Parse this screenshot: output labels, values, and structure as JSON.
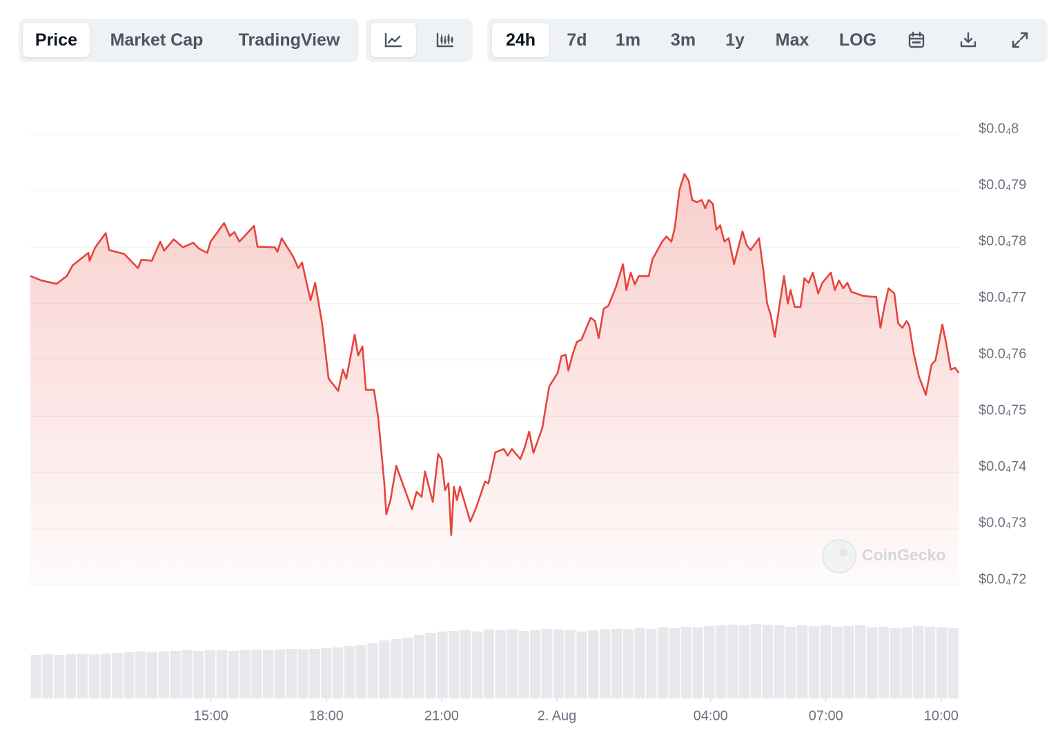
{
  "toolbar": {
    "views": [
      "Price",
      "Market Cap",
      "TradingView"
    ],
    "ranges": [
      "24h",
      "7d",
      "1m",
      "3m",
      "1y",
      "Max",
      "LOG"
    ]
  },
  "chart_data": {
    "type": "line",
    "watermark": "CoinGecko",
    "color": "#e5443b",
    "volume_color": "#e6e8ec",
    "x": [
      10.3,
      10.59,
      10.98,
      11.25,
      11.4,
      11.81,
      11.84,
      11.99,
      12.26,
      12.35,
      12.74,
      13.1,
      13.19,
      13.46,
      13.68,
      13.78,
      14.03,
      14.27,
      14.54,
      14.68,
      14.9,
      14.99,
      15.34,
      15.49,
      15.61,
      15.74,
      16.12,
      16.21,
      16.66,
      16.73,
      16.84,
      17.14,
      17.27,
      17.37,
      17.59,
      17.71,
      17.89,
      18.06,
      18.31,
      18.43,
      18.52,
      18.74,
      18.83,
      18.94,
      19.03,
      19.24,
      19.35,
      19.51,
      19.56,
      19.67,
      19.82,
      20.1,
      20.23,
      20.35,
      20.48,
      20.57,
      20.77,
      20.91,
      21.0,
      21.09,
      21.18,
      21.25,
      21.32,
      21.4,
      21.48,
      21.75,
      21.9,
      22.13,
      22.22,
      22.4,
      22.62,
      22.72,
      22.83,
      23.05,
      23.15,
      23.28,
      23.39,
      23.62,
      23.8,
      24.02,
      24.12,
      24.23,
      24.3,
      24.41,
      24.52,
      24.64,
      24.88,
      24.99,
      25.09,
      25.22,
      25.34,
      25.54,
      25.72,
      25.81,
      25.92,
      26.03,
      26.13,
      26.39,
      26.49,
      26.74,
      26.85,
      26.98,
      27.07,
      27.19,
      27.32,
      27.43,
      27.52,
      27.64,
      27.77,
      27.86,
      27.95,
      28.06,
      28.15,
      28.25,
      28.36,
      28.47,
      28.61,
      28.83,
      28.94,
      29.04,
      29.26,
      29.37,
      29.47,
      29.56,
      29.67,
      29.8,
      29.91,
      30.01,
      30.08,
      30.19,
      30.34,
      30.44,
      30.55,
      30.66,
      30.8,
      30.91,
      31.13,
      31.23,
      31.34,
      31.45,
      31.56,
      31.66,
      31.95,
      32.2,
      32.31,
      32.42,
      32.52,
      32.63,
      32.78,
      32.88,
      32.99,
      33.1,
      33.17,
      33.28,
      33.42,
      33.6,
      33.75,
      33.85,
      34.03,
      34.14,
      34.25,
      34.36,
      34.46
    ],
    "values": [
      7.749e-05,
      7.741e-05,
      7.735e-05,
      7.749e-05,
      7.768e-05,
      7.79e-05,
      7.776e-05,
      7.8e-05,
      7.825e-05,
      7.795e-05,
      7.788e-05,
      7.763e-05,
      7.778e-05,
      7.776e-05,
      7.81e-05,
      7.794e-05,
      7.814e-05,
      7.8e-05,
      7.808e-05,
      7.798e-05,
      7.79e-05,
      7.81e-05,
      7.843e-05,
      7.82e-05,
      7.827e-05,
      7.81e-05,
      7.838e-05,
      7.801e-05,
      7.8e-05,
      7.792e-05,
      7.816e-05,
      7.783e-05,
      7.763e-05,
      7.773e-05,
      7.706e-05,
      7.737e-05,
      7.665e-05,
      7.567e-05,
      7.545e-05,
      7.583e-05,
      7.567e-05,
      7.645e-05,
      7.608e-05,
      7.624e-05,
      7.547e-05,
      7.547e-05,
      7.498e-05,
      7.381e-05,
      7.326e-05,
      7.351e-05,
      7.412e-05,
      7.359e-05,
      7.335e-05,
      7.366e-05,
      7.357e-05,
      7.402e-05,
      7.348e-05,
      7.433e-05,
      7.424e-05,
      7.369e-05,
      7.381e-05,
      7.289e-05,
      7.375e-05,
      7.351e-05,
      7.375e-05,
      7.313e-05,
      7.338e-05,
      7.384e-05,
      7.381e-05,
      7.436e-05,
      7.442e-05,
      7.43e-05,
      7.442e-05,
      7.424e-05,
      7.442e-05,
      7.473e-05,
      7.435e-05,
      7.479e-05,
      7.553e-05,
      7.577e-05,
      7.607e-05,
      7.609e-05,
      7.581e-05,
      7.61e-05,
      7.632e-05,
      7.636e-05,
      7.675e-05,
      7.669e-05,
      7.639e-05,
      7.691e-05,
      7.696e-05,
      7.73e-05,
      7.77e-05,
      7.724e-05,
      7.755e-05,
      7.734e-05,
      7.749e-05,
      7.749e-05,
      7.779e-05,
      7.81e-05,
      7.819e-05,
      7.81e-05,
      7.835e-05,
      7.902e-05,
      7.93e-05,
      7.918e-05,
      7.884e-05,
      7.88e-05,
      7.884e-05,
      7.869e-05,
      7.884e-05,
      7.877e-05,
      7.831e-05,
      7.839e-05,
      7.81e-05,
      7.816e-05,
      7.77e-05,
      7.828e-05,
      7.804e-05,
      7.795e-05,
      7.816e-05,
      7.761e-05,
      7.7e-05,
      7.681e-05,
      7.641e-05,
      7.7e-05,
      7.749e-05,
      7.7e-05,
      7.724e-05,
      7.694e-05,
      7.694e-05,
      7.745e-05,
      7.737e-05,
      7.755e-05,
      7.718e-05,
      7.737e-05,
      7.755e-05,
      7.724e-05,
      7.741e-05,
      7.727e-05,
      7.737e-05,
      7.721e-05,
      7.714e-05,
      7.712e-05,
      7.712e-05,
      7.657e-05,
      7.694e-05,
      7.727e-05,
      7.718e-05,
      7.665e-05,
      7.657e-05,
      7.669e-05,
      7.661e-05,
      7.614e-05,
      7.571e-05,
      7.538e-05,
      7.592e-05,
      7.599e-05,
      7.663e-05,
      7.626e-05,
      7.583e-05,
      7.586e-05,
      7.577e-05
    ],
    "xlim": [
      10.3,
      34.47
    ],
    "xticks": [
      {
        "value": 15,
        "label": "15:00"
      },
      {
        "value": 18,
        "label": "18:00"
      },
      {
        "value": 21,
        "label": "21:00"
      },
      {
        "value": 24,
        "label": "2. Aug"
      },
      {
        "value": 28,
        "label": "04:00"
      },
      {
        "value": 31,
        "label": "07:00"
      },
      {
        "value": 34,
        "label": "10:00"
      }
    ],
    "ylim": [
      7.2e-05,
      8e-05
    ],
    "yticks": [
      {
        "value": 7.2e-05,
        "label": "$0.0₄72"
      },
      {
        "value": 7.3e-05,
        "label": "$0.0₄73"
      },
      {
        "value": 7.4e-05,
        "label": "$0.0₄74"
      },
      {
        "value": 7.5e-05,
        "label": "$0.0₄75"
      },
      {
        "value": 7.6e-05,
        "label": "$0.0₄76"
      },
      {
        "value": 7.7e-05,
        "label": "$0.0₄77"
      },
      {
        "value": 7.8e-05,
        "label": "$0.0₄78"
      },
      {
        "value": 7.9e-05,
        "label": "$0.0₄79"
      },
      {
        "value": 8e-05,
        "label": "$0.0₄8"
      }
    ],
    "grid": true,
    "volume_lim": [
      0,
      110
    ],
    "volume_values": [
      63,
      64,
      63,
      64,
      65,
      64,
      65,
      66,
      67,
      68,
      67,
      68,
      69,
      70,
      69,
      70,
      70,
      69,
      70,
      71,
      70,
      71,
      72,
      71,
      72,
      73,
      74,
      76,
      77,
      80,
      84,
      86,
      88,
      92,
      95,
      97,
      98,
      99,
      97,
      100,
      99,
      100,
      98,
      99,
      101,
      100,
      99,
      97,
      99,
      100,
      101,
      100,
      102,
      101,
      103,
      102,
      104,
      103,
      105,
      106,
      107,
      106,
      108,
      107,
      106,
      104,
      106,
      105,
      106,
      104,
      105,
      106,
      103,
      104,
      102,
      103,
      105,
      104,
      103,
      102
    ]
  }
}
